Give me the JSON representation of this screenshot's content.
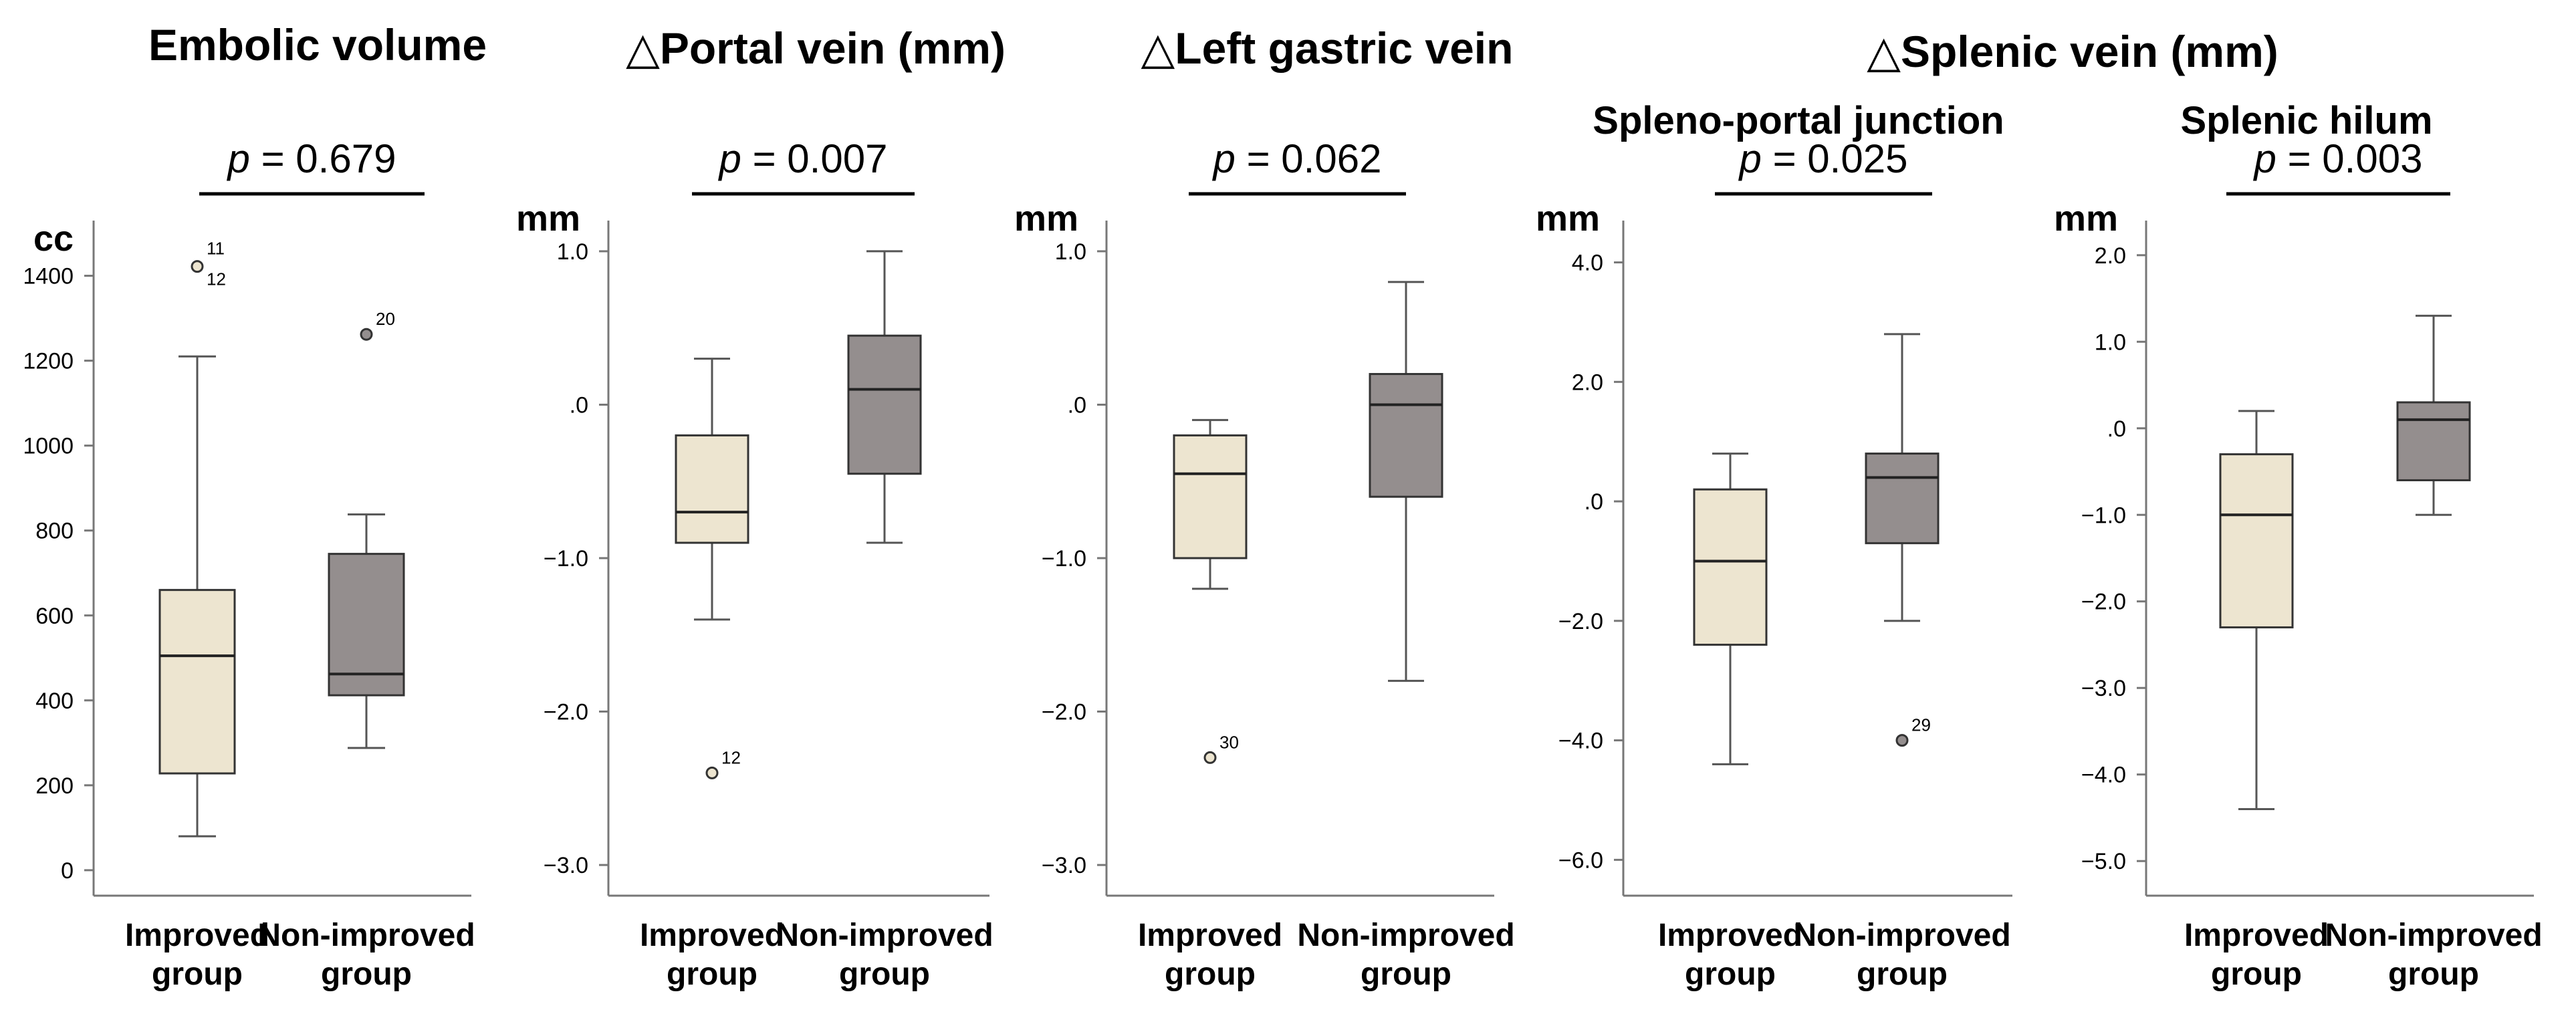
{
  "colors": {
    "improved": "#EDE5D0",
    "non_improved": "#948E8E",
    "stroke": "#555555",
    "axis": "#777777"
  },
  "group_titles": [
    {
      "text": "△Splenic vein (mm)"
    }
  ],
  "chart_data": [
    {
      "type": "boxplot",
      "title": "Embolic volume",
      "subtitle": "",
      "unit_label": "cc",
      "p_label": "p = 0.679",
      "ylim": [
        -60,
        1530
      ],
      "yticks": [
        0,
        200,
        400,
        600,
        800,
        1000,
        1200,
        1400
      ],
      "ytick_labels": [
        "0",
        "200",
        "400",
        "600",
        "800",
        "1000",
        "1200",
        "1400"
      ],
      "categories": [
        "Improved group",
        "Non-improved group"
      ],
      "boxes": [
        {
          "group": "Improved group",
          "whisker_low": 80,
          "q1": 228,
          "median": 505,
          "q3": 660,
          "whisker_high": 1210
        },
        {
          "group": "Non-improved group",
          "whisker_low": 288,
          "q1": 412,
          "median": 462,
          "q3": 745,
          "whisker_high": 838
        }
      ],
      "outliers": [
        {
          "group": 0,
          "value": 1422,
          "labels": [
            "11",
            "12"
          ]
        },
        {
          "group": 1,
          "value": 1262,
          "labels": [
            "20"
          ]
        }
      ]
    },
    {
      "type": "boxplot",
      "title": "△Portal vein (mm)",
      "subtitle": "",
      "unit_label": "mm",
      "p_label": "p = 0.007",
      "ylim": [
        -3.2,
        1.2
      ],
      "yticks": [
        1.0,
        0.0,
        -1.0,
        -2.0,
        -3.0
      ],
      "ytick_labels": [
        "1.0",
        ".0",
        "−1.0",
        "−2.0",
        "−3.0"
      ],
      "categories": [
        "Improved group",
        "Non-improved group"
      ],
      "boxes": [
        {
          "group": "Improved group",
          "whisker_low": -1.4,
          "q1": -0.9,
          "median": -0.7,
          "q3": -0.2,
          "whisker_high": 0.3
        },
        {
          "group": "Non-improved group",
          "whisker_low": -0.9,
          "q1": -0.45,
          "median": 0.1,
          "q3": 0.45,
          "whisker_high": 1.0
        }
      ],
      "outliers": [
        {
          "group": 0,
          "value": -2.4,
          "labels": [
            "12"
          ]
        }
      ]
    },
    {
      "type": "boxplot",
      "title": "△Left gastric vein",
      "subtitle": "",
      "unit_label": "mm",
      "p_label": "p = 0.062",
      "ylim": [
        -3.2,
        1.2
      ],
      "yticks": [
        1.0,
        0.0,
        -1.0,
        -2.0,
        -3.0
      ],
      "ytick_labels": [
        "1.0",
        ".0",
        "−1.0",
        "−2.0",
        "−3.0"
      ],
      "categories": [
        "Improved group",
        "Non-improved group"
      ],
      "boxes": [
        {
          "group": "Improved group",
          "whisker_low": -1.2,
          "q1": -1.0,
          "median": -0.45,
          "q3": -0.2,
          "whisker_high": -0.1
        },
        {
          "group": "Non-improved group",
          "whisker_low": -1.8,
          "q1": -0.6,
          "median": 0.0,
          "q3": 0.2,
          "whisker_high": 0.8
        }
      ],
      "outliers": [
        {
          "group": 0,
          "value": -2.3,
          "labels": [
            "30"
          ]
        }
      ]
    },
    {
      "type": "boxplot",
      "title": "",
      "subtitle": "Spleno-portal junction",
      "unit_label": "mm",
      "p_label": "p = 0.025",
      "ylim": [
        -6.6,
        4.7
      ],
      "yticks": [
        4.0,
        2.0,
        0.0,
        -2.0,
        -4.0,
        -6.0
      ],
      "ytick_labels": [
        "4.0",
        "2.0",
        ".0",
        "−2.0",
        "−4.0",
        "−6.0"
      ],
      "categories": [
        "Improved group",
        "Non-improved group"
      ],
      "boxes": [
        {
          "group": "Improved group",
          "whisker_low": -4.4,
          "q1": -2.4,
          "median": -1.0,
          "q3": 0.2,
          "whisker_high": 0.8
        },
        {
          "group": "Non-improved group",
          "whisker_low": -2.0,
          "q1": -0.7,
          "median": 0.4,
          "q3": 0.8,
          "whisker_high": 2.8
        }
      ],
      "outliers": [
        {
          "group": 1,
          "value": -4.0,
          "labels": [
            "29"
          ]
        }
      ]
    },
    {
      "type": "boxplot",
      "title": "",
      "subtitle": "Splenic hilum",
      "unit_label": "mm",
      "p_label": "p = 0.003",
      "ylim": [
        -5.4,
        2.4
      ],
      "yticks": [
        2.0,
        1.0,
        0.0,
        -1.0,
        -2.0,
        -3.0,
        -4.0,
        -5.0
      ],
      "ytick_labels": [
        "2.0",
        "1.0",
        ".0",
        "−1.0",
        "−2.0",
        "−3.0",
        "−4.0",
        "−5.0"
      ],
      "categories": [
        "Improved group",
        "Non-improved group"
      ],
      "boxes": [
        {
          "group": "Improved group",
          "whisker_low": -4.4,
          "q1": -2.3,
          "median": -1.0,
          "q3": -0.3,
          "whisker_high": 0.2
        },
        {
          "group": "Non-improved group",
          "whisker_low": -1.0,
          "q1": -0.6,
          "median": 0.1,
          "q3": 0.3,
          "whisker_high": 1.3
        }
      ],
      "outliers": []
    }
  ]
}
